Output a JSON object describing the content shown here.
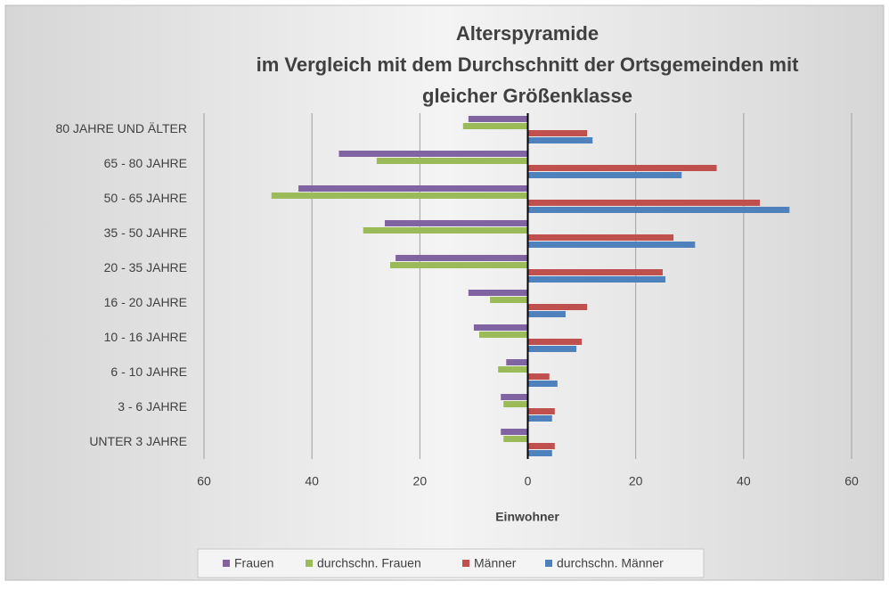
{
  "chart_data": {
    "type": "hbar",
    "title": [
      "Alterspyramide",
      "im Vergleich mit dem Durchschnitt der Ortsgemeinden mit",
      "gleicher Größenklasse"
    ],
    "x_label": "Einwohner",
    "categories": [
      "80 JAHRE UND ÄLTER",
      "65 - 80 JAHRE",
      "50 - 65 JAHRE",
      "35 - 50 JAHRE",
      "20 - 35 JAHRE",
      "16 - 20 JAHRE",
      "10 - 16 JAHRE",
      "6 - 10 JAHRE",
      "3 - 6 JAHRE",
      "UNTER 3 JAHRE"
    ],
    "series": [
      {
        "name": "Frauen",
        "color": "#8064a2",
        "values": [
          -11,
          -35,
          -42.5,
          -26.5,
          -24.5,
          -11,
          -10,
          -4,
          -5,
          -5
        ]
      },
      {
        "name": "durchschn. Frauen",
        "color": "#9bbb59",
        "values": [
          -12,
          -28,
          -47.5,
          -30.5,
          -25.5,
          -7,
          -9,
          -5.5,
          -4.5,
          -4.5
        ]
      },
      {
        "name": "Männer",
        "color": "#c0504d",
        "values": [
          11,
          35,
          43,
          27,
          25,
          11,
          10,
          4,
          5,
          5
        ]
      },
      {
        "name": "durchschn. Männer",
        "color": "#4f81bd",
        "values": [
          12,
          28.5,
          48.5,
          31,
          25.5,
          7,
          9,
          5.5,
          4.5,
          4.5
        ]
      }
    ],
    "xlim": [
      -60,
      60
    ],
    "xticks": [
      {
        "value": -60,
        "label": "60"
      },
      {
        "value": -40,
        "label": "40"
      },
      {
        "value": -20,
        "label": "20"
      },
      0,
      20,
      40,
      60
    ],
    "grid": true,
    "legend": "bottom"
  }
}
